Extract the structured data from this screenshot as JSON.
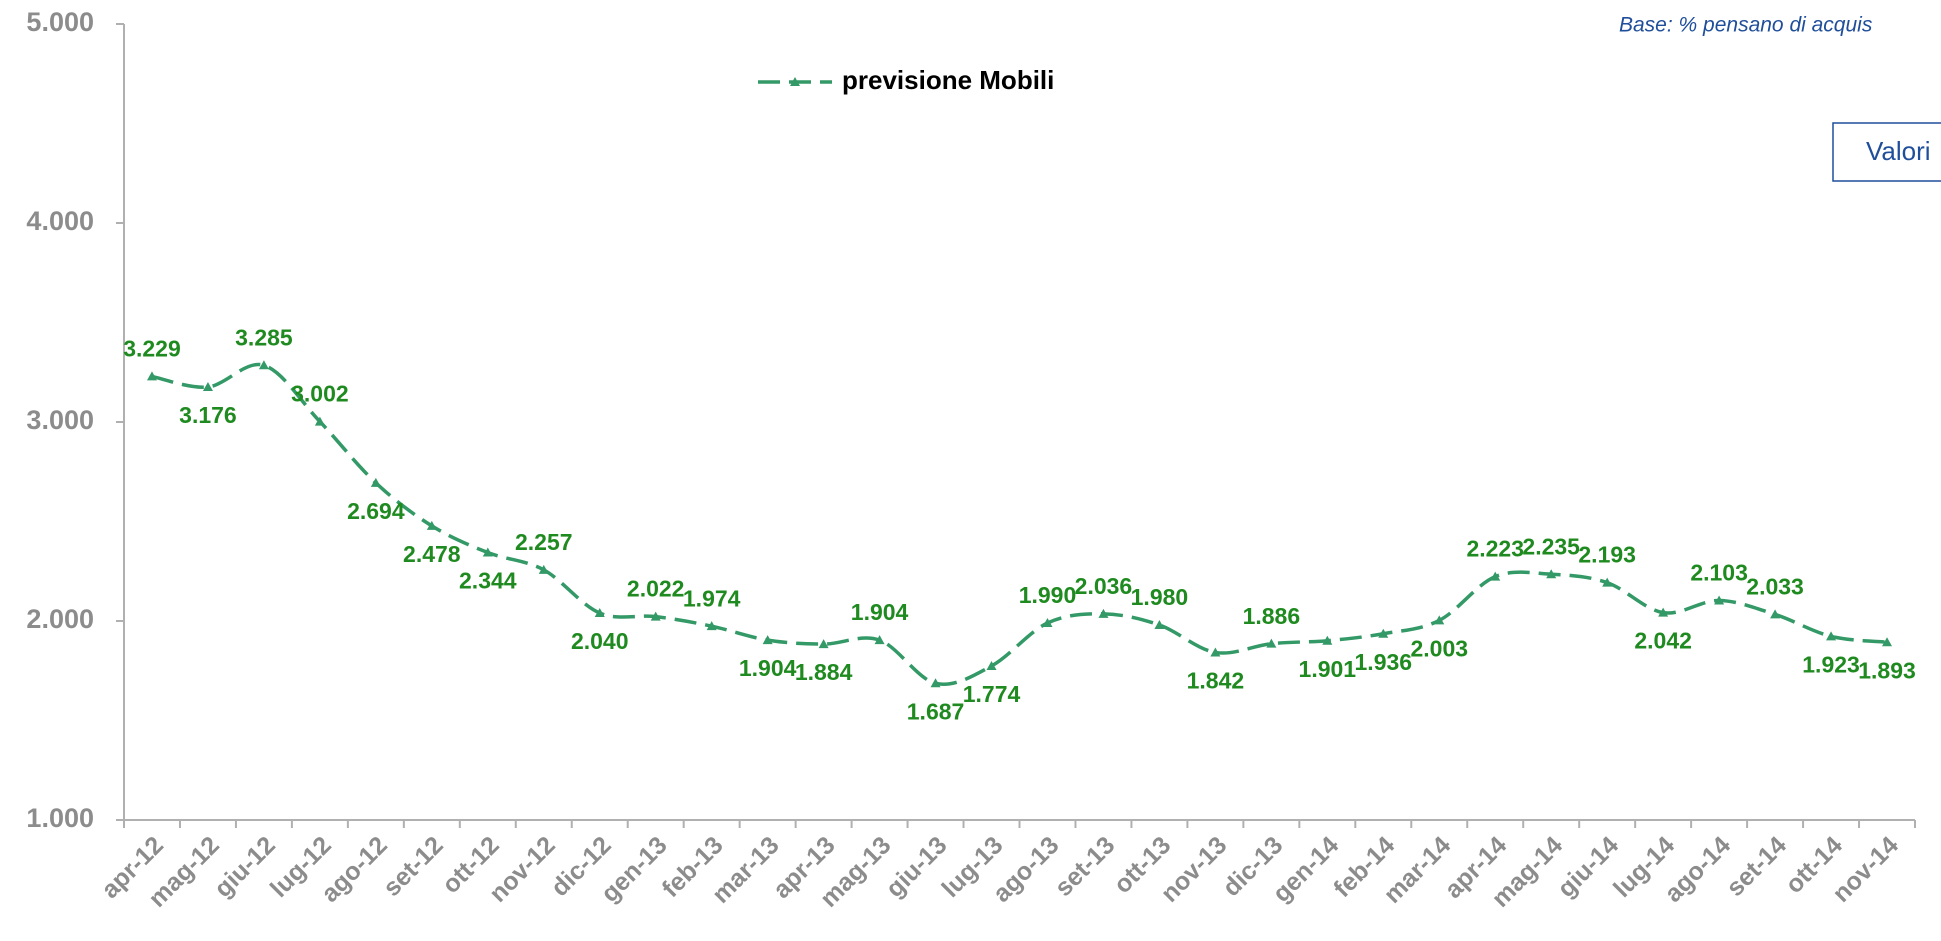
{
  "chart_data": {
    "type": "line",
    "subtitle": "Base: % pensano di acquis",
    "annotation": "Valori",
    "categories": [
      "apr-12",
      "mag-12",
      "giu-12",
      "lug-12",
      "ago-12",
      "set-12",
      "ott-12",
      "nov-12",
      "dic-12",
      "gen-13",
      "feb-13",
      "mar-13",
      "apr-13",
      "mag-13",
      "giu-13",
      "lug-13",
      "ago-13",
      "set-13",
      "ott-13",
      "nov-13",
      "dic-13",
      "gen-14",
      "feb-14",
      "mar-14",
      "apr-14",
      "mag-14",
      "giu-14",
      "lug-14",
      "ago-14",
      "set-14",
      "ott-14",
      "nov-14"
    ],
    "series": [
      {
        "name": "previsione Mobili",
        "color": "#339966",
        "label_color": "#1f8a1f",
        "values": [
          3229,
          3176,
          3285,
          3002,
          2694,
          2478,
          2344,
          2257,
          2040,
          2022,
          1974,
          1904,
          1884,
          1904,
          1687,
          1774,
          1990,
          2036,
          1980,
          1842,
          1886,
          1901,
          1936,
          2003,
          2223,
          2235,
          2193,
          2042,
          2103,
          2033,
          1923,
          1893
        ],
        "value_labels": [
          "3.229",
          "3.176",
          "3.285",
          "3.002",
          "2.694",
          "2.478",
          "2.344",
          "2.257",
          "2.040",
          "2.022",
          "1.974",
          "1.904",
          "1.884",
          "1.904",
          "1.687",
          "1.774",
          "1.990",
          "2.036",
          "1.980",
          "1.842",
          "1.886",
          "1.901",
          "1.936",
          "2.003",
          "2.223",
          "2.235",
          "2.193",
          "2.042",
          "2.103",
          "2.033",
          "1.923",
          "1.893"
        ]
      }
    ],
    "ylim": [
      1000,
      5000
    ],
    "yticks": [
      {
        "value": 1000,
        "label": "1.000"
      },
      {
        "value": 2000,
        "label": "2.000"
      },
      {
        "value": 3000,
        "label": "3.000"
      },
      {
        "value": 4000,
        "label": "4.000"
      },
      {
        "value": 5000,
        "label": "5.000"
      }
    ],
    "grid": false,
    "legend": "top"
  }
}
